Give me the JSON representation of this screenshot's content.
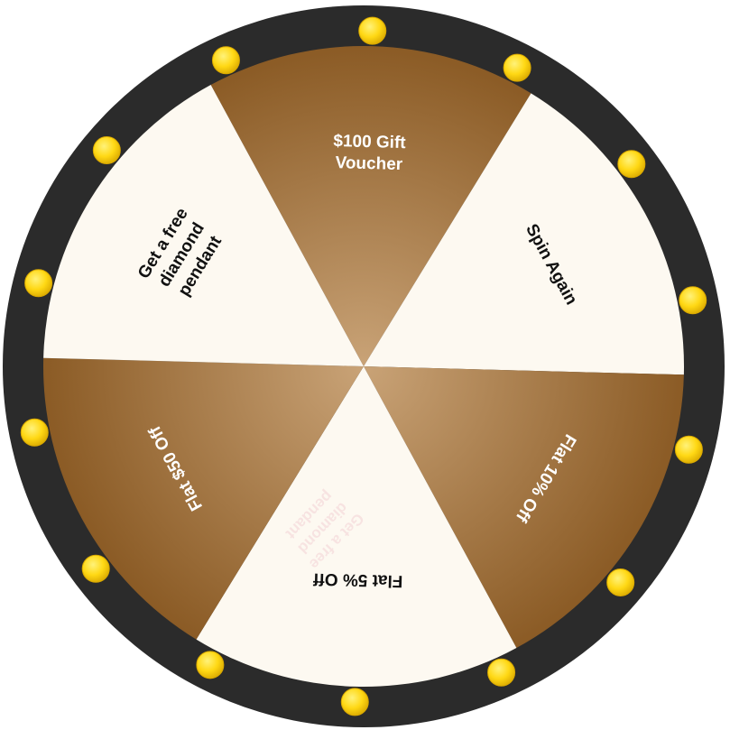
{
  "wheel": {
    "segments": [
      {
        "lines": [
          "$100 Gift",
          "Voucher"
        ],
        "fill": "gold",
        "text_color": "#ffffff"
      },
      {
        "lines": [
          "Spin Again"
        ],
        "fill": "cream",
        "text_color": "#111111"
      },
      {
        "lines": [
          "Flat 10% Off"
        ],
        "fill": "gold",
        "text_color": "#ffffff"
      },
      {
        "lines": [
          "Flat 5% Off"
        ],
        "fill": "cream",
        "text_color": "#111111"
      },
      {
        "lines": [
          "Flat $50 Off"
        ],
        "fill": "gold",
        "text_color": "#ffffff"
      },
      {
        "lines": [
          "Get a free",
          "diamond",
          "pendant"
        ],
        "fill": "cream",
        "text_color": "#111111"
      }
    ],
    "ghost_label": [
      "Get a free",
      "diamond",
      "pendant"
    ],
    "colors": {
      "rim": "#2b2b2b",
      "cream": "#fdf9f1",
      "gold_center": "#c9a377",
      "gold_edge": "#8a5a24",
      "light_bulb": "#ffd814",
      "light_bulb_edge": "#d9a800"
    },
    "light_count": 14
  }
}
